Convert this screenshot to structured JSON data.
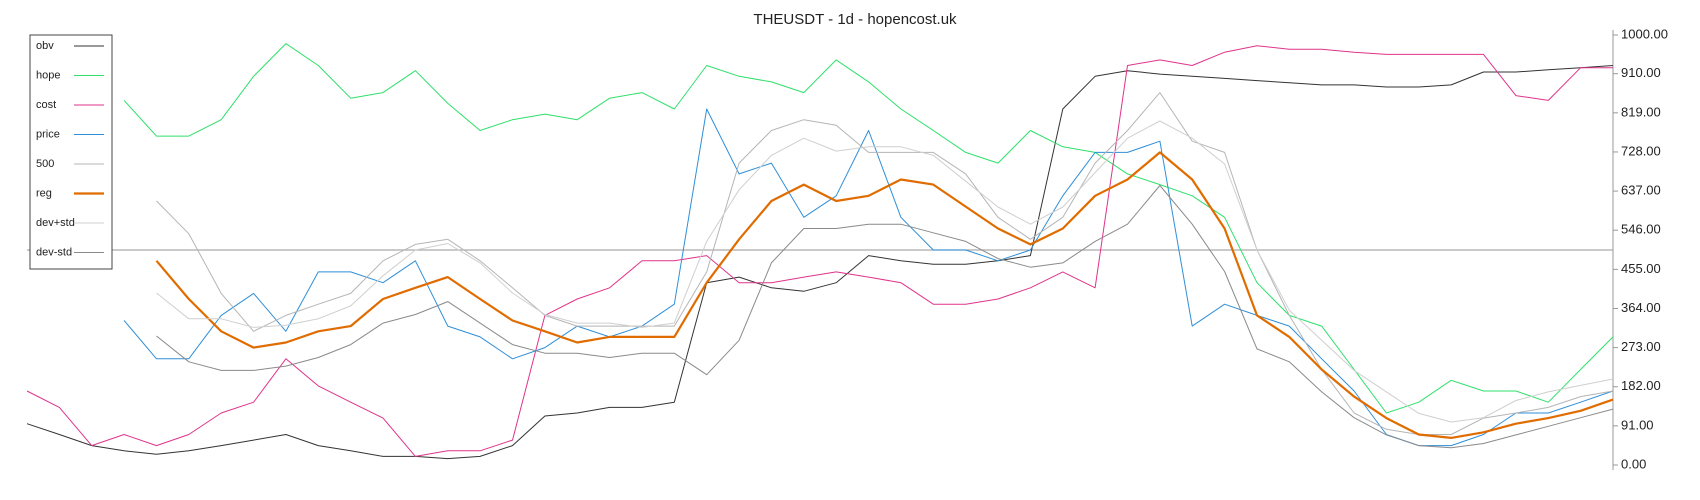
{
  "chart_data": {
    "type": "line",
    "title": "THEUSDT - 1d - hopencost.uk",
    "ylim": [
      0,
      1000
    ],
    "yticks": [
      {
        "value": 0,
        "label": "0.00"
      },
      {
        "value": 91,
        "label": "91.00"
      },
      {
        "value": 182,
        "label": "182.00"
      },
      {
        "value": 273,
        "label": "273.00"
      },
      {
        "value": 364,
        "label": "364.00"
      },
      {
        "value": 455,
        "label": "455.00"
      },
      {
        "value": 546,
        "label": "546.00"
      },
      {
        "value": 637,
        "label": "637.00"
      },
      {
        "value": 728,
        "label": "728.00"
      },
      {
        "value": 819,
        "label": "819.00"
      },
      {
        "value": 910,
        "label": "910.00"
      },
      {
        "value": 1000,
        "label": "1000.00"
      }
    ],
    "reference_line": 500,
    "legend": "upper left",
    "series": [
      {
        "name": "obv",
        "color": "#333333",
        "width": 1,
        "values": [
          96,
          71,
          45,
          33,
          25,
          33,
          45,
          58,
          71,
          45,
          33,
          20,
          20,
          15,
          20,
          45,
          114,
          121,
          134,
          134,
          146,
          424,
          437,
          412,
          404,
          424,
          487,
          475,
          467,
          467,
          475,
          487,
          828,
          904,
          917,
          909,
          904,
          899,
          894,
          889,
          884,
          884,
          879,
          879,
          884,
          914,
          914,
          919,
          924,
          929
        ]
      },
      {
        "name": "hope",
        "color": "#2ee06a",
        "width": 1,
        "values": [
          null,
          null,
          null,
          848,
          765,
          765,
          803,
          904,
          980,
          929,
          853,
          866,
          917,
          841,
          778,
          803,
          816,
          803,
          853,
          866,
          828,
          929,
          904,
          891,
          866,
          942,
          891,
          828,
          778,
          727,
          702,
          778,
          740,
          727,
          677,
          652,
          626,
          576,
          424,
          348,
          323,
          222,
          121,
          146,
          197,
          172,
          172,
          146,
          222,
          298
        ]
      },
      {
        "name": "cost",
        "color": "#e0338a",
        "width": 1,
        "values": [
          172,
          134,
          45,
          71,
          45,
          71,
          121,
          146,
          247,
          184,
          146,
          109,
          20,
          33,
          33,
          58,
          348,
          386,
          412,
          475,
          475,
          487,
          424,
          424,
          437,
          449,
          437,
          424,
          374,
          374,
          386,
          412,
          449,
          412,
          929,
          942,
          929,
          960,
          975,
          967,
          967,
          960,
          955,
          955,
          955,
          955,
          859,
          848,
          924,
          924
        ]
      },
      {
        "name": "price",
        "color": "#2f8fd8",
        "width": 1,
        "values": [
          null,
          null,
          null,
          336,
          247,
          247,
          348,
          399,
          311,
          449,
          449,
          424,
          475,
          323,
          298,
          247,
          273,
          323,
          298,
          323,
          374,
          828,
          677,
          702,
          576,
          626,
          778,
          576,
          500,
          500,
          475,
          500,
          626,
          727,
          727,
          753,
          323,
          374,
          348,
          323,
          247,
          172,
          71,
          45,
          45,
          71,
          121,
          121,
          146,
          172
        ]
      },
      {
        "name": "500",
        "color": "#b5b5b5",
        "width": 1,
        "values": [
          null,
          null,
          null,
          null,
          614,
          538,
          399,
          311,
          348,
          374,
          399,
          475,
          513,
          525,
          475,
          412,
          348,
          323,
          323,
          323,
          323,
          449,
          702,
          778,
          803,
          790,
          727,
          727,
          727,
          677,
          576,
          525,
          576,
          702,
          778,
          866,
          753,
          727,
          500,
          348,
          222,
          121,
          83,
          71,
          71,
          109,
          121,
          134,
          159,
          172
        ]
      },
      {
        "name": "reg",
        "color": "#e06c00",
        "width": 2.2,
        "values": [
          null,
          null,
          null,
          null,
          475,
          386,
          311,
          273,
          285,
          311,
          323,
          386,
          412,
          437,
          386,
          336,
          311,
          285,
          298,
          298,
          298,
          424,
          525,
          614,
          652,
          614,
          626,
          664,
          652,
          601,
          550,
          513,
          550,
          626,
          664,
          727,
          664,
          550,
          348,
          298,
          222,
          159,
          109,
          71,
          63,
          76,
          96,
          109,
          126,
          152
        ]
      },
      {
        "name": "dev+std",
        "color": "#cfcfcf",
        "width": 1,
        "values": [
          null,
          null,
          null,
          null,
          400,
          340,
          340,
          320,
          325,
          340,
          370,
          440,
          500,
          515,
          470,
          400,
          350,
          330,
          330,
          320,
          330,
          520,
          640,
          720,
          760,
          730,
          740,
          740,
          720,
          660,
          600,
          560,
          600,
          680,
          760,
          800,
          760,
          700,
          500,
          360,
          290,
          220,
          170,
          120,
          100,
          110,
          150,
          170,
          185,
          200
        ]
      },
      {
        "name": "dev-std",
        "color": "#8a8a8a",
        "width": 1,
        "values": [
          null,
          null,
          null,
          null,
          300,
          240,
          220,
          220,
          230,
          250,
          280,
          330,
          350,
          380,
          330,
          280,
          260,
          260,
          250,
          260,
          260,
          210,
          290,
          470,
          550,
          550,
          560,
          560,
          540,
          520,
          480,
          460,
          470,
          520,
          560,
          650,
          560,
          450,
          270,
          240,
          170,
          110,
          70,
          45,
          40,
          50,
          70,
          90,
          110,
          130
        ]
      }
    ]
  }
}
